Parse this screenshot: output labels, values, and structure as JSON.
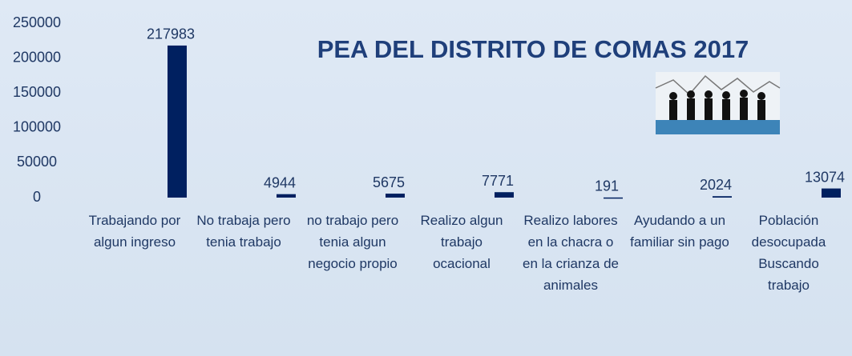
{
  "chart_data": {
    "type": "bar",
    "title": "PEA DEL DISTRITO DE COMAS 2017",
    "categories": [
      "Trabajando por algun ingreso",
      "No trabaja pero tenia trabajo",
      "no trabajo pero tenia algun negocio propio",
      "Realizo algun trabajo ocacional",
      "Realizo labores en la chacra o en la crianza de animales",
      "Ayudando a un familiar sin pago",
      "Población desocupada Buscando trabajo"
    ],
    "values": [
      217983,
      4944,
      5675,
      7771,
      191,
      2024,
      13074
    ],
    "color": "#002060",
    "ylim": [
      0,
      250000
    ],
    "yticks": [
      0,
      50000,
      100000,
      150000,
      200000,
      250000
    ],
    "grid": false
  }
}
